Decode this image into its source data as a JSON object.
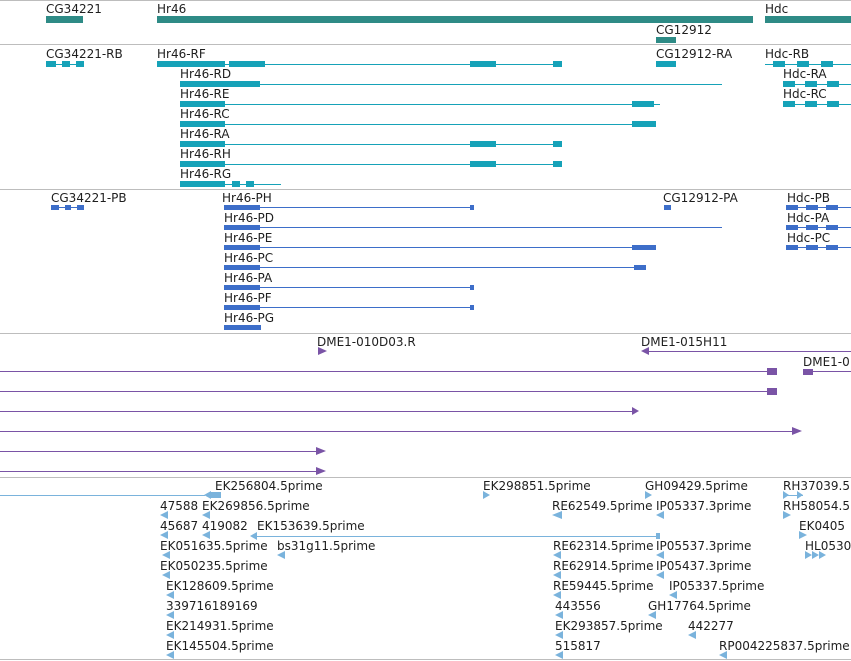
{
  "colors": {
    "gene": "#2e8b86",
    "transcript": "#16a2b8",
    "protein": "#3d6ec9",
    "clone": "#7a54a6",
    "est": "#7ab3dc",
    "separator": "#bdbdbd",
    "text": "#1e1e1e"
  },
  "tracks": {
    "genes": [
      {
        "label": "CG34221"
      },
      {
        "label": "Hr46"
      },
      {
        "label": "CG12912"
      },
      {
        "label": "Hdc"
      }
    ],
    "transcripts": [
      {
        "label": "CG34221-RB"
      },
      {
        "label": "Hr46-RF"
      },
      {
        "label": "CG12912-RA"
      },
      {
        "label": "Hdc-RB"
      },
      {
        "label": "Hr46-RD"
      },
      {
        "label": "Hdc-RA"
      },
      {
        "label": "Hr46-RE"
      },
      {
        "label": "Hdc-RC"
      },
      {
        "label": "Hr46-RC"
      },
      {
        "label": "Hr46-RA"
      },
      {
        "label": "Hr46-RH"
      },
      {
        "label": "Hr46-RG"
      }
    ],
    "proteins": [
      {
        "label": "CG34221-PB"
      },
      {
        "label": "Hr46-PH"
      },
      {
        "label": "CG12912-PA"
      },
      {
        "label": "Hdc-PB"
      },
      {
        "label": "Hr46-PD"
      },
      {
        "label": "Hdc-PA"
      },
      {
        "label": "Hr46-PE"
      },
      {
        "label": "Hdc-PC"
      },
      {
        "label": "Hr46-PC"
      },
      {
        "label": "Hr46-PA"
      },
      {
        "label": "Hr46-PF"
      },
      {
        "label": "Hr46-PG"
      }
    ],
    "clones": [
      {
        "label": "DME1-010D03.R"
      },
      {
        "label": "DME1-015H11"
      },
      {
        "label": "DME1-0"
      }
    ],
    "ests": [
      {
        "label": "EK256804.5prime"
      },
      {
        "label": "EK298851.5prime"
      },
      {
        "label": "GH09429.5prime"
      },
      {
        "label": "RH37039.5"
      },
      {
        "label": "47588"
      },
      {
        "label": "EK269856.5prime"
      },
      {
        "label": "RE62549.5prime"
      },
      {
        "label": "IP05337.3prime"
      },
      {
        "label": "RH58054.5"
      },
      {
        "label": "45687"
      },
      {
        "label": "419082"
      },
      {
        "label": "EK153639.5prime"
      },
      {
        "label": "EK0405"
      },
      {
        "label": "EK051635.5prime"
      },
      {
        "label": "bs31g11.5prime"
      },
      {
        "label": "RE62314.5prime"
      },
      {
        "label": "IP05537.3prime"
      },
      {
        "label": "HL0530"
      },
      {
        "label": "EK050235.5prime"
      },
      {
        "label": "RE62914.5prime"
      },
      {
        "label": "IP05437.3prime"
      },
      {
        "label": "EK128609.5prime"
      },
      {
        "label": "RE59445.5prime"
      },
      {
        "label": "IP05337.5prime"
      },
      {
        "label": "339716189169"
      },
      {
        "label": "443556"
      },
      {
        "label": "GH17764.5prime"
      },
      {
        "label": "EK214931.5prime"
      },
      {
        "label": "EK293857.5prime"
      },
      {
        "label": "442277"
      },
      {
        "label": "EK145504.5prime"
      },
      {
        "label": "515817"
      },
      {
        "label": "RP004225837.5prime"
      }
    ]
  }
}
